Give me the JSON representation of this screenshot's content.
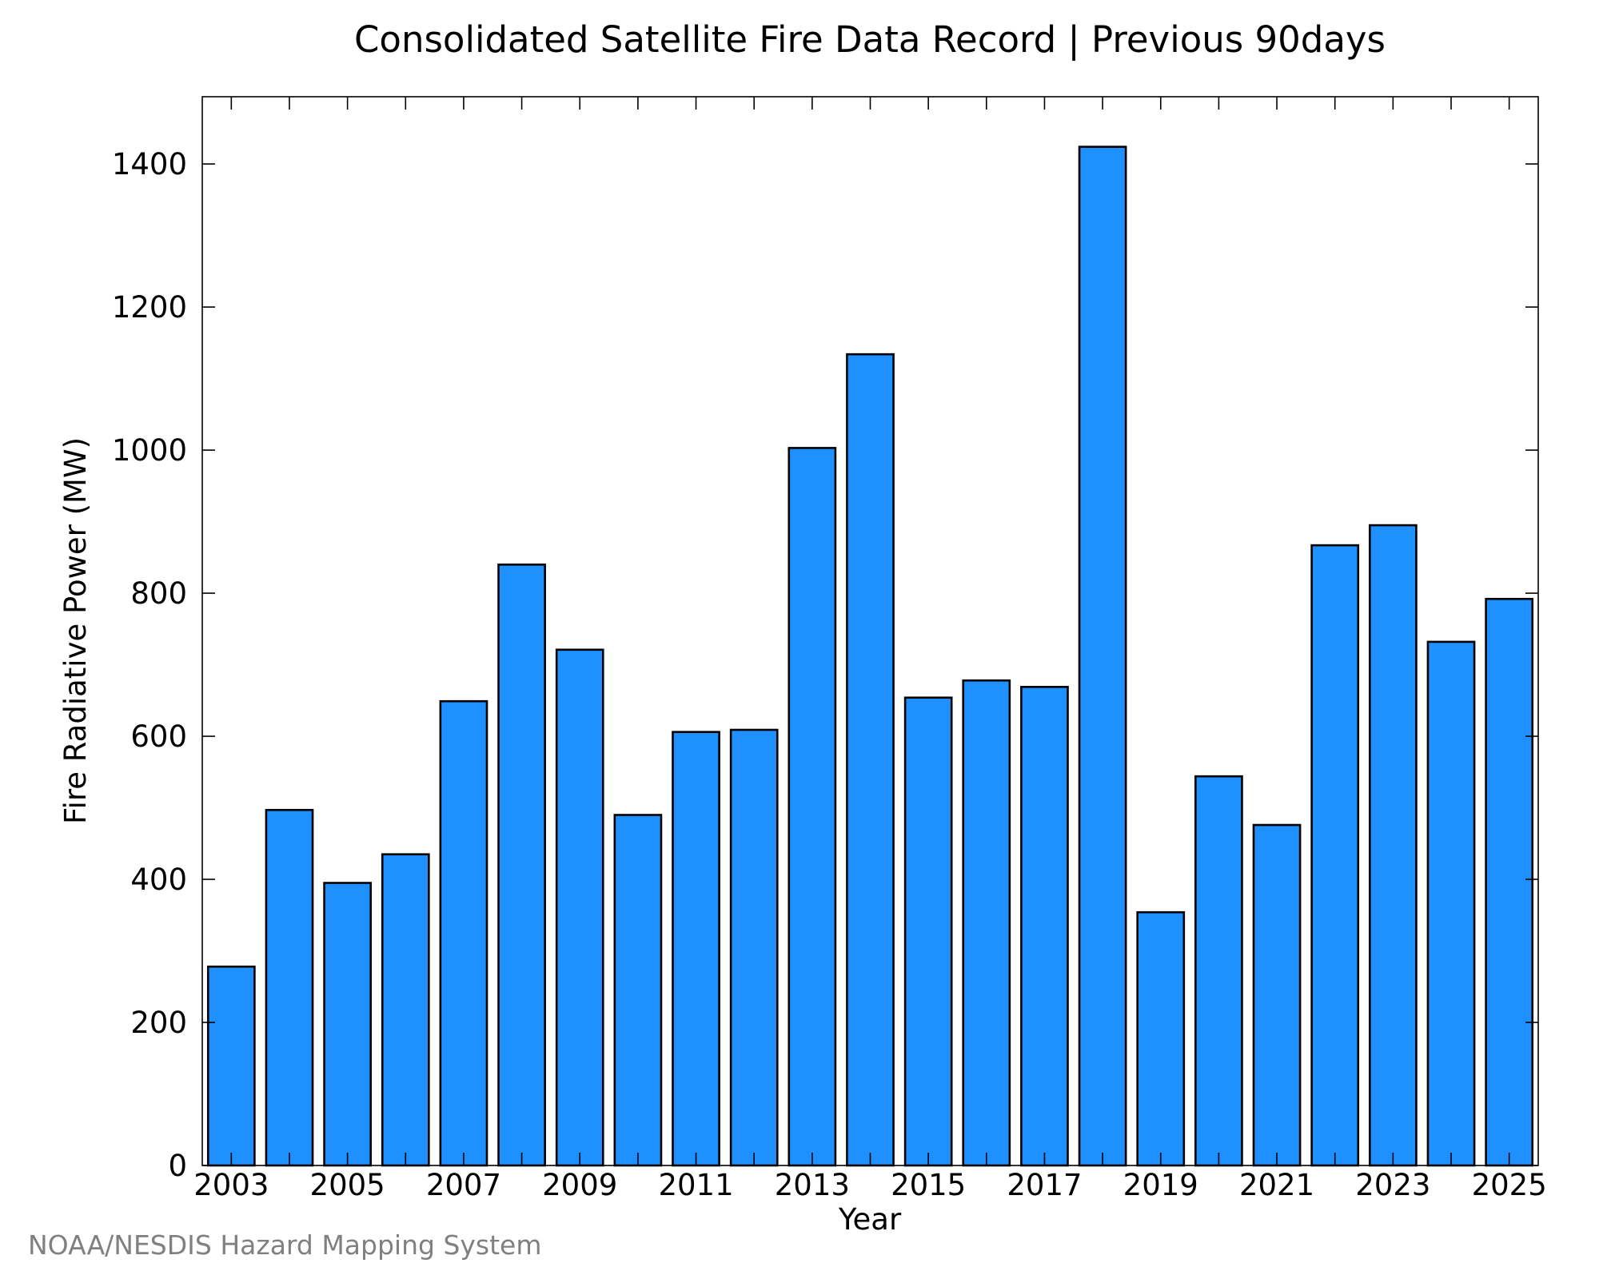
{
  "chart_data": {
    "type": "bar",
    "title": "Consolidated Satellite Fire Data Record | Previous 90days",
    "xlabel": "Year",
    "ylabel": "Fire Radiative Power (MW)",
    "categories": [
      "2003",
      "2004",
      "2005",
      "2006",
      "2007",
      "2008",
      "2009",
      "2010",
      "2011",
      "2012",
      "2013",
      "2014",
      "2015",
      "2016",
      "2017",
      "2018",
      "2019",
      "2020",
      "2021",
      "2022",
      "2023",
      "2024",
      "2025"
    ],
    "values": [
      278,
      497,
      395,
      435,
      649,
      840,
      721,
      490,
      606,
      609,
      1003,
      1134,
      654,
      678,
      669,
      1424,
      354,
      544,
      476,
      867,
      895,
      732,
      792
    ],
    "x_tick_labels": [
      "2003",
      "2005",
      "2007",
      "2009",
      "2011",
      "2013",
      "2015",
      "2017",
      "2019",
      "2021",
      "2023",
      "2025"
    ],
    "y_tick_labels": [
      "0",
      "200",
      "400",
      "600",
      "800",
      "1000",
      "1200",
      "1400"
    ],
    "y_ticks": [
      0,
      200,
      400,
      600,
      800,
      1000,
      1200,
      1400
    ],
    "ylim": [
      0,
      1494
    ],
    "xlim": [
      2002.5,
      2025.5
    ],
    "bar_color": "#1e90ff",
    "bar_edge_color": "#000000",
    "grid": false,
    "legend": "none"
  },
  "footer": {
    "credit": "NOAA/NESDIS Hazard Mapping System"
  }
}
